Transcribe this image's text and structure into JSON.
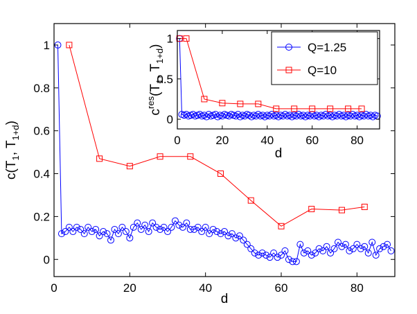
{
  "chart_data": [
    {
      "name": "main",
      "type": "line",
      "xlabel": "d",
      "ylabel": {
        "base": "c(T",
        "sub1": "1",
        "mid": ", T",
        "sub2": "1+d",
        "end": ")"
      },
      "xlim": [
        0,
        90
      ],
      "ylim": [
        -0.08,
        1.1
      ],
      "xticks": [
        0,
        20,
        40,
        60,
        80
      ],
      "yticks": [
        0,
        0.2,
        0.4,
        0.6,
        0.8,
        1
      ],
      "ytick_labels": [
        "0",
        "0.2",
        "0.4",
        "0.6",
        "0.8",
        "1"
      ],
      "xtick_labels": [
        "0",
        "20",
        "40",
        "60",
        "80"
      ],
      "series": [
        {
          "name": "Q=1.25",
          "color": "#0000ff",
          "marker": "circle",
          "x": [
            1,
            2,
            3,
            4,
            5,
            6,
            7,
            8,
            9,
            10,
            11,
            12,
            13,
            14,
            15,
            16,
            17,
            18,
            19,
            20,
            21,
            22,
            23,
            24,
            25,
            26,
            27,
            28,
            29,
            30,
            31,
            32,
            33,
            34,
            35,
            36,
            37,
            38,
            39,
            40,
            41,
            42,
            43,
            44,
            45,
            46,
            47,
            48,
            49,
            50,
            51,
            52,
            53,
            54,
            55,
            56,
            57,
            58,
            59,
            60,
            61,
            62,
            63,
            64,
            65,
            66,
            67,
            68,
            69,
            70,
            71,
            72,
            73,
            74,
            75,
            76,
            77,
            78,
            79,
            80,
            81,
            82,
            83,
            84,
            85,
            86,
            87,
            88,
            89
          ],
          "y": [
            1.0,
            0.12,
            0.13,
            0.15,
            0.13,
            0.15,
            0.14,
            0.12,
            0.15,
            0.13,
            0.14,
            0.11,
            0.13,
            0.12,
            0.09,
            0.14,
            0.12,
            0.15,
            0.13,
            0.1,
            0.15,
            0.17,
            0.14,
            0.16,
            0.13,
            0.17,
            0.15,
            0.14,
            0.15,
            0.13,
            0.15,
            0.18,
            0.16,
            0.15,
            0.17,
            0.14,
            0.14,
            0.15,
            0.13,
            0.15,
            0.12,
            0.14,
            0.13,
            0.12,
            0.13,
            0.11,
            0.12,
            0.1,
            0.11,
            0.09,
            0.07,
            0.05,
            0.03,
            0.02,
            0.03,
            0.02,
            0.01,
            0.03,
            0.01,
            0.02,
            0.04,
            0.0,
            -0.01,
            -0.01,
            0.07,
            0.03,
            0.04,
            0.02,
            0.03,
            0.05,
            0.04,
            0.06,
            0.03,
            0.05,
            0.08,
            0.06,
            0.07,
            0.04,
            0.05,
            0.07,
            0.05,
            0.06,
            0.03,
            0.08,
            0.02,
            0.05,
            0.06,
            0.07,
            0.04
          ]
        },
        {
          "name": "Q=10",
          "color": "#ff0000",
          "marker": "square",
          "x": [
            4,
            12,
            20,
            28,
            36,
            44,
            52,
            60,
            68,
            76,
            82
          ],
          "y": [
            1.0,
            0.47,
            0.435,
            0.48,
            0.48,
            0.4,
            0.275,
            0.155,
            0.235,
            0.23,
            0.245
          ]
        }
      ]
    },
    {
      "name": "inset",
      "type": "line",
      "xlabel": "d",
      "ylabel": {
        "base": "c",
        "sup": "res",
        "mid": "(T",
        "sub1": "1",
        "mid2": ", T",
        "sub2": "1+d",
        "end": ")"
      },
      "xlim": [
        0,
        90
      ],
      "ylim": [
        -0.12,
        1.1
      ],
      "xticks": [
        0,
        20,
        40,
        60,
        80
      ],
      "yticks": [
        0,
        0.5,
        1
      ],
      "ytick_labels": [
        "0",
        "0.5",
        "1"
      ],
      "xtick_labels": [
        "0",
        "20",
        "40",
        "60",
        "80"
      ],
      "legend": {
        "position": "top-right",
        "entries": [
          "Q=1.25",
          "Q=10"
        ]
      },
      "series": [
        {
          "name": "Q=1.25",
          "color": "#0000ff",
          "marker": "circle",
          "x": [
            1,
            2,
            3,
            4,
            5,
            6,
            7,
            8,
            9,
            10,
            11,
            12,
            13,
            14,
            15,
            16,
            17,
            18,
            19,
            20,
            21,
            22,
            23,
            24,
            25,
            26,
            27,
            28,
            29,
            30,
            31,
            32,
            33,
            34,
            35,
            36,
            37,
            38,
            39,
            40,
            41,
            42,
            43,
            44,
            45,
            46,
            47,
            48,
            49,
            50,
            51,
            52,
            53,
            54,
            55,
            56,
            57,
            58,
            59,
            60,
            61,
            62,
            63,
            64,
            65,
            66,
            67,
            68,
            69,
            70,
            71,
            72,
            73,
            74,
            75,
            76,
            77,
            78,
            79,
            80,
            81,
            82,
            83,
            84,
            85,
            86,
            87,
            88,
            89
          ],
          "y": [
            1.0,
            0.06,
            0.05,
            0.06,
            0.04,
            0.05,
            0.06,
            0.04,
            0.05,
            0.06,
            0.04,
            0.05,
            0.03,
            0.06,
            0.04,
            0.05,
            0.06,
            0.03,
            0.05,
            0.04,
            0.06,
            0.05,
            0.04,
            0.06,
            0.05,
            0.04,
            0.06,
            0.03,
            0.05,
            0.04,
            0.06,
            0.05,
            0.03,
            0.05,
            0.04,
            0.06,
            0.04,
            0.05,
            0.03,
            0.05,
            0.04,
            0.06,
            0.04,
            0.05,
            0.03,
            0.05,
            0.04,
            0.06,
            0.04,
            0.05,
            0.03,
            0.05,
            0.04,
            0.06,
            0.04,
            0.05,
            0.03,
            0.05,
            0.04,
            0.06,
            0.04,
            0.05,
            0.03,
            0.05,
            0.04,
            0.06,
            0.04,
            0.05,
            0.03,
            0.05,
            0.04,
            0.06,
            0.04,
            0.05,
            0.03,
            0.05,
            0.04,
            0.06,
            0.04,
            0.05,
            0.03,
            0.05,
            0.04,
            0.06,
            0.04,
            0.05,
            0.03,
            0.05,
            0.04
          ]
        },
        {
          "name": "Q=10",
          "color": "#ff0000",
          "marker": "square",
          "x": [
            1,
            4,
            12,
            20,
            28,
            36,
            44,
            52,
            60,
            68,
            76,
            82
          ],
          "y": [
            1.0,
            1.0,
            0.25,
            0.2,
            0.19,
            0.19,
            0.13,
            0.13,
            0.13,
            0.13,
            0.13,
            0.13
          ]
        }
      ]
    }
  ]
}
